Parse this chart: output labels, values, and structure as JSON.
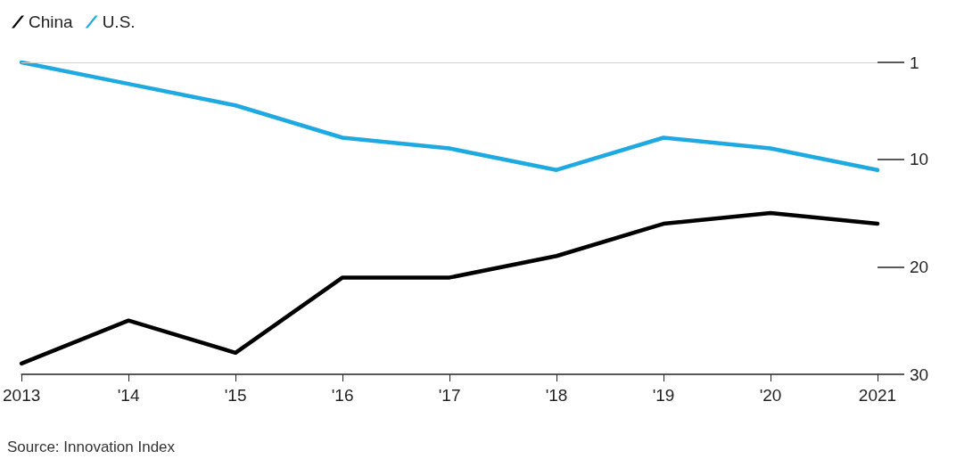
{
  "chart_data": {
    "type": "line",
    "categories": [
      "2013",
      "'14",
      "'15",
      "'16",
      "'17",
      "'18",
      "'19",
      "'20",
      "2021"
    ],
    "series": [
      {
        "name": "China",
        "color": "#000000",
        "values": [
          29,
          25,
          28,
          21,
          21,
          19,
          16,
          15,
          16
        ]
      },
      {
        "name": "U.S.",
        "color": "#1fa9e1",
        "values": [
          1,
          3,
          5,
          8,
          9,
          11,
          8,
          9,
          11
        ]
      }
    ],
    "ylim": [
      30,
      1
    ],
    "yticks": [
      1,
      10,
      20,
      30
    ],
    "grid": false,
    "legend": "top left",
    "marker": "none",
    "line_style": "solid",
    "ref_lines": [
      {
        "axis": "y",
        "value": 1,
        "color": "#d0d0d0"
      }
    ],
    "annotations": [
      "Source: Innovation Index"
    ]
  }
}
